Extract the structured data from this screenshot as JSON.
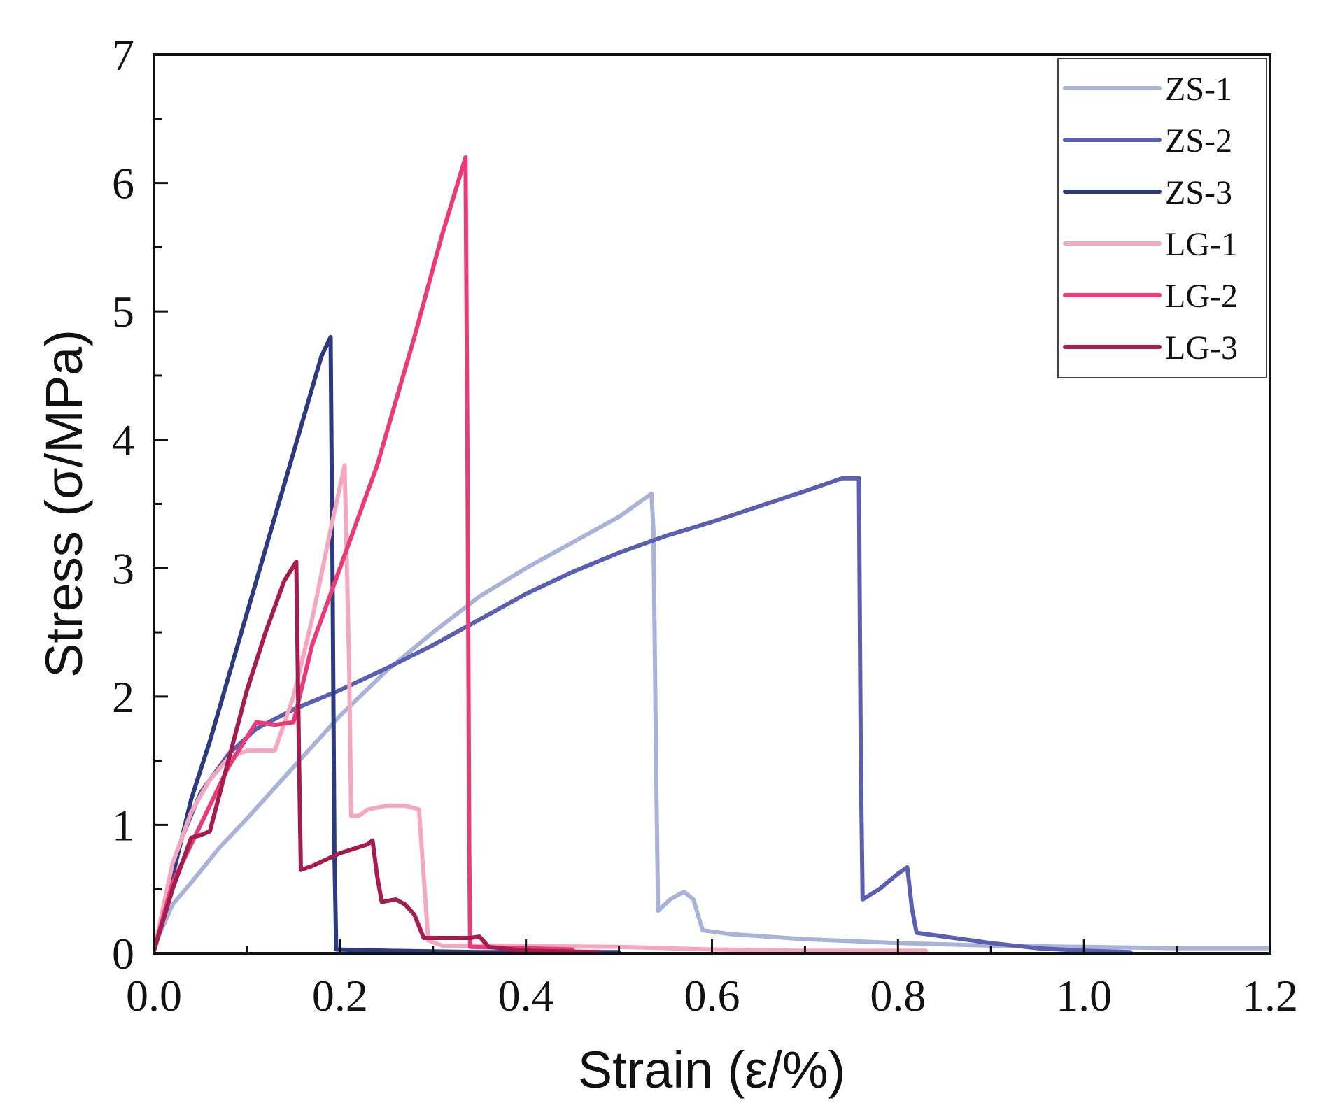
{
  "chart_data": {
    "type": "line",
    "title": "",
    "xlabel": "Strain (ε/%)",
    "ylabel": "Stress (σ/MPa)",
    "xlim": [
      0,
      1.2
    ],
    "ylim": [
      0,
      7
    ],
    "x_ticks": [
      0.0,
      0.2,
      0.4,
      0.6,
      0.8,
      1.0,
      1.2
    ],
    "x_tick_labels": [
      "0.0",
      "0.2",
      "0.4",
      "0.6",
      "0.8",
      "1.0",
      "1.2"
    ],
    "y_ticks": [
      0,
      1,
      2,
      3,
      4,
      5,
      6,
      7
    ],
    "y_tick_labels": [
      "0",
      "1",
      "2",
      "3",
      "4",
      "5",
      "6",
      "7"
    ],
    "grid": false,
    "legend_position": "top-right",
    "series": [
      {
        "name": "ZS-1",
        "color": "#a9b3d9",
        "points": [
          [
            0,
            0.05
          ],
          [
            0.02,
            0.38
          ],
          [
            0.04,
            0.55
          ],
          [
            0.07,
            0.82
          ],
          [
            0.1,
            1.05
          ],
          [
            0.15,
            1.45
          ],
          [
            0.2,
            1.85
          ],
          [
            0.25,
            2.2
          ],
          [
            0.3,
            2.5
          ],
          [
            0.35,
            2.78
          ],
          [
            0.4,
            3.0
          ],
          [
            0.45,
            3.2
          ],
          [
            0.5,
            3.4
          ],
          [
            0.535,
            3.58
          ],
          [
            0.537,
            3.3
          ],
          [
            0.54,
            1.4
          ],
          [
            0.542,
            0.33
          ],
          [
            0.555,
            0.42
          ],
          [
            0.57,
            0.48
          ],
          [
            0.58,
            0.42
          ],
          [
            0.59,
            0.18
          ],
          [
            0.62,
            0.15
          ],
          [
            0.7,
            0.11
          ],
          [
            0.8,
            0.08
          ],
          [
            0.9,
            0.06
          ],
          [
            1.0,
            0.05
          ],
          [
            1.1,
            0.04
          ],
          [
            1.2,
            0.04
          ]
        ]
      },
      {
        "name": "ZS-2",
        "color": "#5a5fb0",
        "points": [
          [
            0,
            0.02
          ],
          [
            0.015,
            0.5
          ],
          [
            0.03,
            0.9
          ],
          [
            0.05,
            1.25
          ],
          [
            0.08,
            1.55
          ],
          [
            0.11,
            1.75
          ],
          [
            0.15,
            1.9
          ],
          [
            0.2,
            2.05
          ],
          [
            0.25,
            2.22
          ],
          [
            0.3,
            2.4
          ],
          [
            0.35,
            2.6
          ],
          [
            0.4,
            2.8
          ],
          [
            0.45,
            2.97
          ],
          [
            0.5,
            3.12
          ],
          [
            0.55,
            3.25
          ],
          [
            0.6,
            3.36
          ],
          [
            0.65,
            3.48
          ],
          [
            0.7,
            3.6
          ],
          [
            0.74,
            3.7
          ],
          [
            0.758,
            3.7
          ],
          [
            0.76,
            1.5
          ],
          [
            0.762,
            0.42
          ],
          [
            0.78,
            0.5
          ],
          [
            0.8,
            0.62
          ],
          [
            0.81,
            0.67
          ],
          [
            0.815,
            0.35
          ],
          [
            0.82,
            0.16
          ],
          [
            0.85,
            0.13
          ],
          [
            0.9,
            0.08
          ],
          [
            0.95,
            0.04
          ],
          [
            1.0,
            0.02
          ],
          [
            1.05,
            0.01
          ]
        ]
      },
      {
        "name": "ZS-3",
        "color": "#2d3a80",
        "points": [
          [
            0,
            0.02
          ],
          [
            0.02,
            0.6
          ],
          [
            0.04,
            1.2
          ],
          [
            0.06,
            1.65
          ],
          [
            0.08,
            2.15
          ],
          [
            0.1,
            2.65
          ],
          [
            0.12,
            3.15
          ],
          [
            0.14,
            3.65
          ],
          [
            0.16,
            4.15
          ],
          [
            0.18,
            4.65
          ],
          [
            0.19,
            4.8
          ],
          [
            0.192,
            3.0
          ],
          [
            0.194,
            0.8
          ],
          [
            0.196,
            0.03
          ],
          [
            0.25,
            0.02
          ],
          [
            0.35,
            0.01
          ],
          [
            0.5,
            0.01
          ]
        ]
      },
      {
        "name": "LG-1",
        "color": "#f4a8bf",
        "points": [
          [
            0,
            0.02
          ],
          [
            0.02,
            0.7
          ],
          [
            0.04,
            1.1
          ],
          [
            0.06,
            1.35
          ],
          [
            0.08,
            1.52
          ],
          [
            0.1,
            1.58
          ],
          [
            0.13,
            1.58
          ],
          [
            0.15,
            2.0
          ],
          [
            0.17,
            2.6
          ],
          [
            0.19,
            3.3
          ],
          [
            0.205,
            3.8
          ],
          [
            0.21,
            2.2
          ],
          [
            0.212,
            1.07
          ],
          [
            0.22,
            1.07
          ],
          [
            0.23,
            1.12
          ],
          [
            0.25,
            1.15
          ],
          [
            0.27,
            1.15
          ],
          [
            0.285,
            1.12
          ],
          [
            0.29,
            0.6
          ],
          [
            0.295,
            0.1
          ],
          [
            0.31,
            0.06
          ],
          [
            0.35,
            0.06
          ],
          [
            0.5,
            0.05
          ],
          [
            0.6,
            0.03
          ],
          [
            0.7,
            0.02
          ],
          [
            0.83,
            0.02
          ]
        ]
      },
      {
        "name": "LG-2",
        "color": "#ea3a78",
        "points": [
          [
            0,
            0.02
          ],
          [
            0.02,
            0.55
          ],
          [
            0.05,
            1.0
          ],
          [
            0.08,
            1.45
          ],
          [
            0.11,
            1.8
          ],
          [
            0.13,
            1.78
          ],
          [
            0.15,
            1.8
          ],
          [
            0.17,
            2.4
          ],
          [
            0.2,
            3.0
          ],
          [
            0.24,
            3.8
          ],
          [
            0.28,
            4.8
          ],
          [
            0.31,
            5.6
          ],
          [
            0.335,
            6.2
          ],
          [
            0.337,
            4.0
          ],
          [
            0.339,
            0.8
          ],
          [
            0.34,
            0.05
          ],
          [
            0.4,
            0.04
          ],
          [
            0.45,
            0.03
          ]
        ]
      },
      {
        "name": "LG-3",
        "color": "#a51d4e",
        "points": [
          [
            0,
            0.02
          ],
          [
            0.02,
            0.5
          ],
          [
            0.04,
            0.9
          ],
          [
            0.05,
            0.92
          ],
          [
            0.06,
            0.95
          ],
          [
            0.08,
            1.5
          ],
          [
            0.1,
            2.05
          ],
          [
            0.12,
            2.5
          ],
          [
            0.14,
            2.9
          ],
          [
            0.153,
            3.05
          ],
          [
            0.156,
            1.5
          ],
          [
            0.158,
            0.65
          ],
          [
            0.17,
            0.68
          ],
          [
            0.2,
            0.78
          ],
          [
            0.23,
            0.85
          ],
          [
            0.235,
            0.88
          ],
          [
            0.24,
            0.6
          ],
          [
            0.245,
            0.4
          ],
          [
            0.26,
            0.42
          ],
          [
            0.27,
            0.38
          ],
          [
            0.28,
            0.3
          ],
          [
            0.29,
            0.12
          ],
          [
            0.31,
            0.12
          ],
          [
            0.34,
            0.12
          ],
          [
            0.35,
            0.13
          ],
          [
            0.36,
            0.05
          ],
          [
            0.4,
            0.02
          ],
          [
            0.48,
            0.01
          ]
        ]
      }
    ]
  }
}
